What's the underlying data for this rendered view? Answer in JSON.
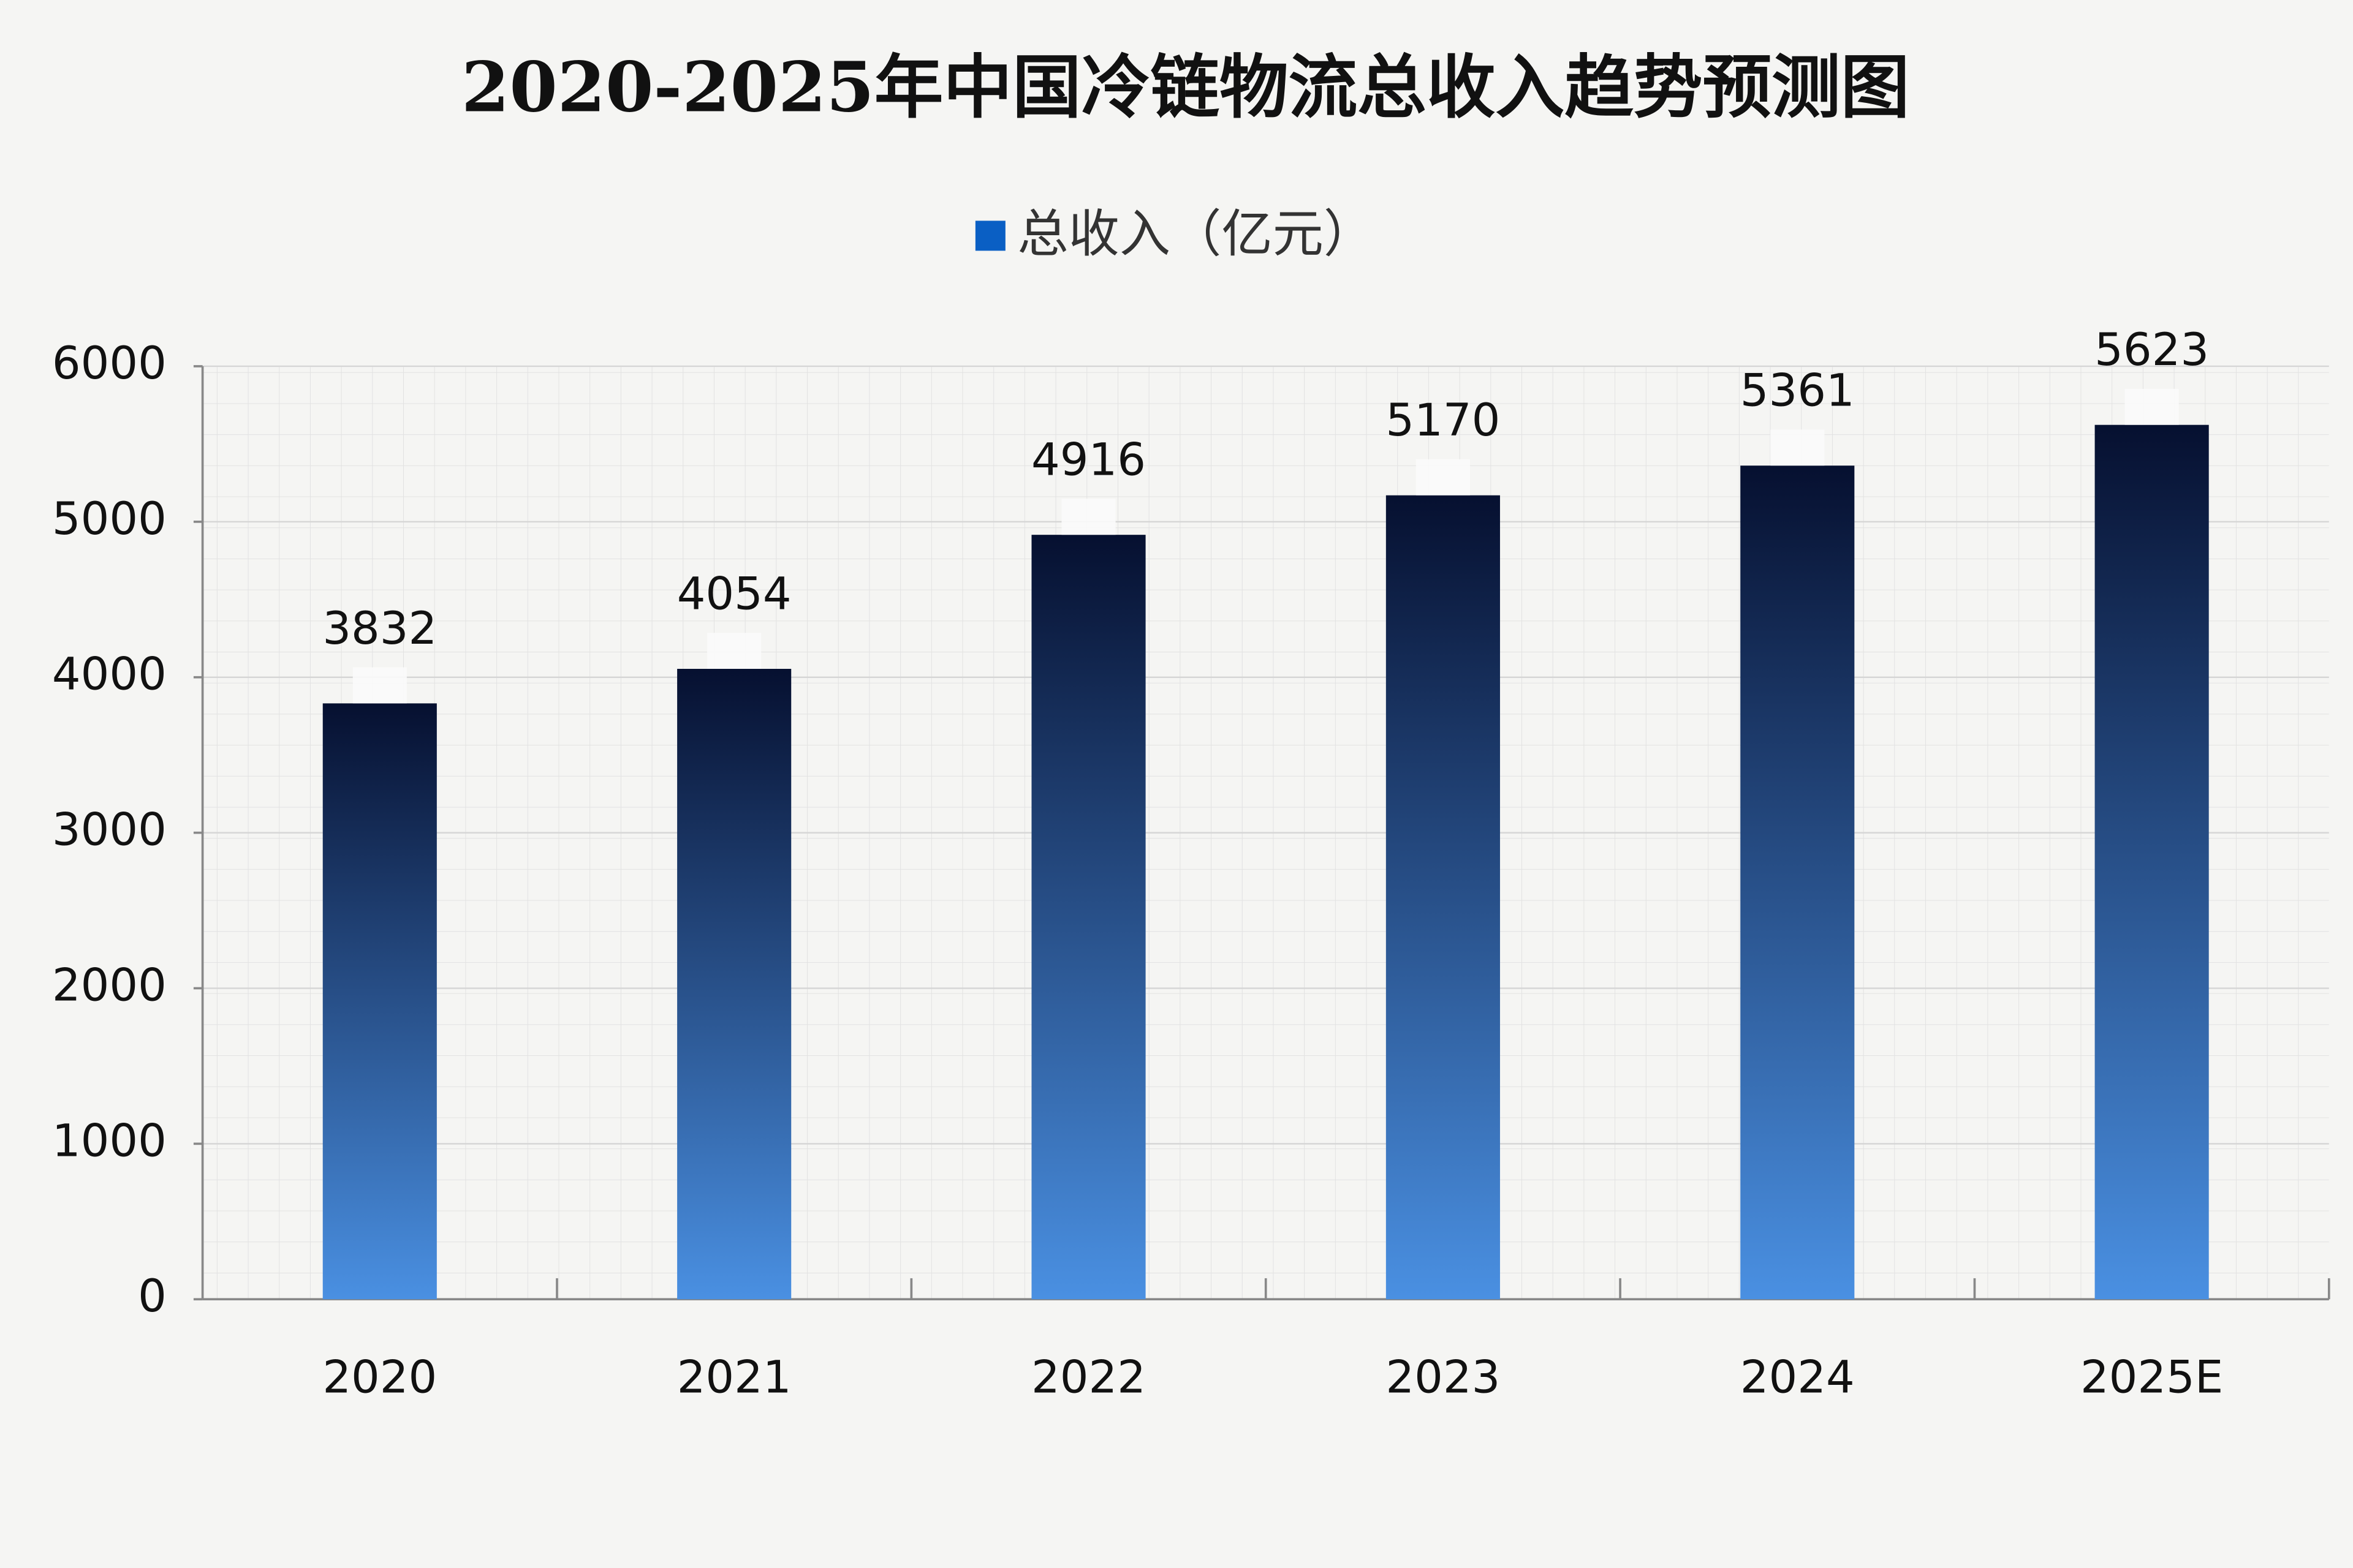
{
  "chart_data": {
    "type": "bar",
    "title": "2020-2025年中国冷链物流总收入趋势预测图",
    "categories": [
      "2020",
      "2021",
      "2022",
      "2023",
      "2024",
      "2025E"
    ],
    "series": [
      {
        "name": "总收入（亿元）",
        "color": "#0a5fc4",
        "gradient": [
          "#061030",
          "#4a90e2"
        ],
        "values": [
          3832,
          4054,
          4916,
          5170,
          5361,
          5623
        ]
      }
    ],
    "ylim": [
      0,
      6000
    ],
    "yticks": [
      0,
      1000,
      2000,
      3000,
      4000,
      5000,
      6000
    ],
    "grid": true,
    "legend": "top"
  }
}
